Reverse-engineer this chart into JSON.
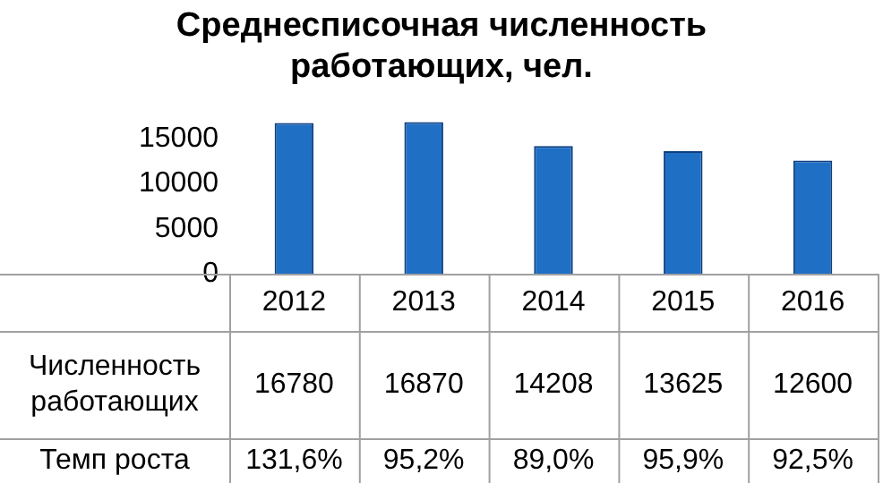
{
  "chart_data": {
    "type": "bar",
    "title": "Среднесписочная численность работающих, чел.",
    "categories": [
      "2012",
      "2013",
      "2014",
      "2015",
      "2016"
    ],
    "series": [
      {
        "name": "Численность работающих",
        "color": "#1f6fc5",
        "values": [
          16780,
          16870,
          14208,
          13625,
          12600
        ]
      }
    ],
    "ylim": [
      0,
      17000
    ],
    "yticks": [
      0,
      5000,
      10000,
      15000
    ],
    "grid": false,
    "legend": false,
    "data_labels": true,
    "annotations": [
      "Темп роста",
      "131,6%",
      "95,2%",
      "89,0%",
      "95,9%",
      "92,5%"
    ]
  }
}
